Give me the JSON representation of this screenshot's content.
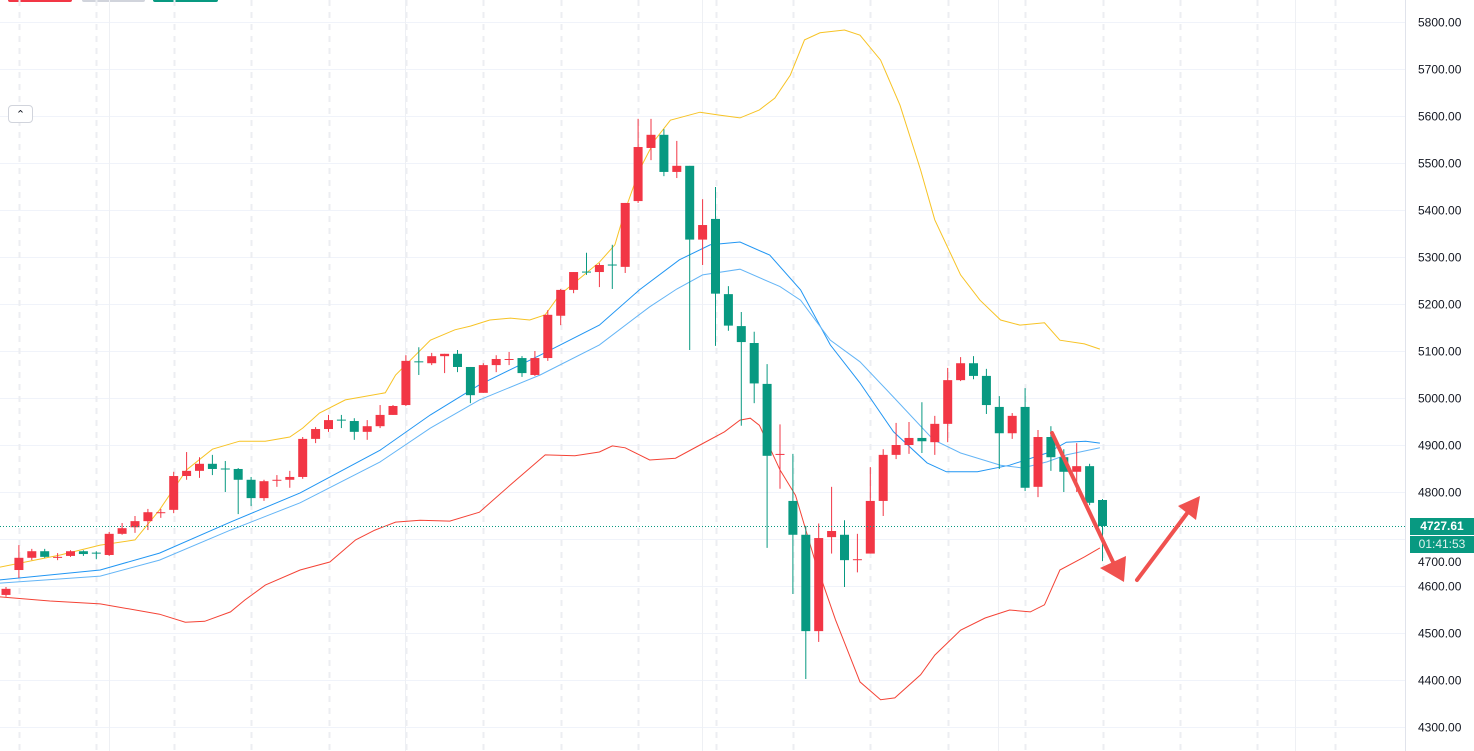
{
  "chart_data": {
    "type": "candlestick",
    "title": "",
    "ylim": [
      4300,
      5800
    ],
    "y_ticks": [
      "4300.00",
      "4400.00",
      "4500.00",
      "4600.00",
      "4700.00",
      "4800.00",
      "4900.00",
      "5000.00",
      "5100.00",
      "5200.00",
      "5300.00",
      "5400.00",
      "5500.00",
      "5600.00",
      "5700.00",
      "5800.00"
    ],
    "up_color": "#F23645",
    "down_color": "#089981",
    "candles_ohlc": [
      [
        4581,
        4598,
        4577,
        4594
      ],
      [
        4634,
        4687,
        4617,
        4660
      ],
      [
        4660,
        4679,
        4655,
        4674
      ],
      [
        4674,
        4679,
        4660,
        4662
      ],
      [
        4661,
        4670,
        4655,
        4662
      ],
      [
        4664,
        4676,
        4662,
        4674
      ],
      [
        4674,
        4676,
        4664,
        4668
      ],
      [
        4671,
        4674,
        4657,
        4670
      ],
      [
        4666,
        4715,
        4664,
        4711
      ],
      [
        4711,
        4734,
        4709,
        4723
      ],
      [
        4725,
        4749,
        4713,
        4738
      ],
      [
        4738,
        4764,
        4719,
        4757
      ],
      [
        4756,
        4764,
        4745,
        4757
      ],
      [
        4762,
        4843,
        4755,
        4834
      ],
      [
        4834,
        4885,
        4826,
        4845
      ],
      [
        4845,
        4874,
        4830,
        4860
      ],
      [
        4860,
        4879,
        4836,
        4849
      ],
      [
        4850,
        4866,
        4800,
        4849
      ],
      [
        4849,
        4851,
        4753,
        4826
      ],
      [
        4826,
        4832,
        4770,
        4787
      ],
      [
        4787,
        4826,
        4781,
        4823
      ],
      [
        4825,
        4836,
        4811,
        4826
      ],
      [
        4826,
        4845,
        4809,
        4832
      ],
      [
        4832,
        4917,
        4828,
        4913
      ],
      [
        4913,
        4938,
        4904,
        4934
      ],
      [
        4934,
        4964,
        4928,
        4953
      ],
      [
        4954,
        4964,
        4936,
        4953
      ],
      [
        4951,
        4957,
        4911,
        4928
      ],
      [
        4928,
        4953,
        4911,
        4940
      ],
      [
        4940,
        4985,
        4936,
        4964
      ],
      [
        4964,
        4985,
        4964,
        4983
      ],
      [
        4985,
        5091,
        4983,
        5079
      ],
      [
        5078,
        5108,
        5049,
        5077
      ],
      [
        5074,
        5096,
        5070,
        5089
      ],
      [
        5089,
        5094,
        5053,
        5094
      ],
      [
        5094,
        5102,
        5055,
        5066
      ],
      [
        5066,
        5066,
        4989,
        5006
      ],
      [
        5011,
        5074,
        5011,
        5070
      ],
      [
        5070,
        5091,
        5055,
        5083
      ],
      [
        5082,
        5098,
        5070,
        5083
      ],
      [
        5085,
        5089,
        5045,
        5053
      ],
      [
        5049,
        5100,
        5047,
        5085
      ],
      [
        5085,
        5187,
        5079,
        5177
      ],
      [
        5175,
        5232,
        5155,
        5230
      ],
      [
        5230,
        5268,
        5223,
        5268
      ],
      [
        5269,
        5309,
        5262,
        5268
      ],
      [
        5268,
        5287,
        5236,
        5283
      ],
      [
        5284,
        5326,
        5232,
        5283
      ],
      [
        5279,
        5415,
        5266,
        5415
      ],
      [
        5419,
        5594,
        5415,
        5534
      ],
      [
        5532,
        5594,
        5506,
        5560
      ],
      [
        5560,
        5572,
        5472,
        5481
      ],
      [
        5481,
        5547,
        5468,
        5494
      ],
      [
        5494,
        5494,
        5102,
        5337
      ],
      [
        5337,
        5423,
        5283,
        5368
      ],
      [
        5381,
        5449,
        5111,
        5222
      ],
      [
        5221,
        5238,
        5143,
        5154
      ],
      [
        5153,
        5183,
        4941,
        5119
      ],
      [
        5117,
        5141,
        4989,
        5031
      ],
      [
        5030,
        5072,
        4681,
        4877
      ],
      [
        4880,
        4944,
        4807,
        4881
      ],
      [
        4781,
        4881,
        4583,
        4709
      ],
      [
        4709,
        4728,
        4402,
        4504
      ],
      [
        4504,
        4733,
        4481,
        4702
      ],
      [
        4704,
        4811,
        4669,
        4717
      ],
      [
        4709,
        4740,
        4598,
        4655
      ],
      [
        4656,
        4711,
        4629,
        4657
      ],
      [
        4669,
        4853,
        4669,
        4781
      ],
      [
        4781,
        4891,
        4749,
        4879
      ],
      [
        4879,
        4947,
        4870,
        4900
      ],
      [
        4900,
        4949,
        4881,
        4915
      ],
      [
        4915,
        4991,
        4883,
        4908
      ],
      [
        4906,
        4962,
        4879,
        4945
      ],
      [
        4945,
        5064,
        4906,
        5038
      ],
      [
        5038,
        5087,
        5036,
        5074
      ],
      [
        5074,
        5089,
        5040,
        5047
      ],
      [
        5047,
        5062,
        4966,
        4985
      ],
      [
        4981,
        5004,
        4849,
        4925
      ],
      [
        4925,
        4968,
        4913,
        4962
      ],
      [
        4981,
        5021,
        4802,
        4809
      ],
      [
        4811,
        4932,
        4789,
        4917
      ],
      [
        4917,
        4940,
        4845,
        4874
      ],
      [
        4874,
        4891,
        4800,
        4843
      ],
      [
        4843,
        4904,
        4800,
        4855
      ],
      [
        4855,
        4860,
        4772,
        4777
      ],
      [
        4783,
        4785,
        4653,
        4727.61
      ]
    ],
    "series": [
      {
        "name": "upper-band",
        "color": "#F7C325",
        "points": [
          [
            -0.5,
            4640
          ],
          [
            4.2,
            4666
          ],
          [
            7.3,
            4687
          ],
          [
            10,
            4698
          ],
          [
            11.9,
            4762
          ],
          [
            14,
            4847
          ],
          [
            16,
            4891
          ],
          [
            18.1,
            4908
          ],
          [
            20.1,
            4908
          ],
          [
            22,
            4917
          ],
          [
            23,
            4936
          ],
          [
            24.3,
            4968
          ],
          [
            26.3,
            4996
          ],
          [
            29.4,
            5011
          ],
          [
            30.2,
            5049
          ],
          [
            32.9,
            5123
          ],
          [
            34.8,
            5145
          ],
          [
            36,
            5153
          ],
          [
            37.5,
            5166
          ],
          [
            39.1,
            5170
          ],
          [
            40.6,
            5166
          ],
          [
            41.8,
            5177
          ],
          [
            42.9,
            5219
          ],
          [
            44.5,
            5255
          ],
          [
            46,
            5289
          ],
          [
            47.2,
            5326
          ],
          [
            48,
            5400
          ],
          [
            49.1,
            5485
          ],
          [
            50.3,
            5549
          ],
          [
            51.5,
            5591
          ],
          [
            53.8,
            5608
          ],
          [
            55.3,
            5602
          ],
          [
            56.9,
            5596
          ],
          [
            58.4,
            5613
          ],
          [
            59.6,
            5638
          ],
          [
            60.8,
            5687
          ],
          [
            61.9,
            5762
          ],
          [
            63.1,
            5777
          ],
          [
            65,
            5783
          ],
          [
            66.2,
            5772
          ],
          [
            67.8,
            5719
          ],
          [
            69.3,
            5623
          ],
          [
            70.9,
            5485
          ],
          [
            72,
            5379
          ],
          [
            74,
            5262
          ],
          [
            75.5,
            5208
          ],
          [
            77.1,
            5166
          ],
          [
            78.6,
            5155
          ],
          [
            80.5,
            5160
          ],
          [
            81.7,
            5123
          ],
          [
            83.6,
            5115
          ],
          [
            84.8,
            5104
          ]
        ]
      },
      {
        "name": "lower-band",
        "color": "#F44336",
        "points": [
          [
            -0.5,
            4577
          ],
          [
            3.4,
            4568
          ],
          [
            7.3,
            4562
          ],
          [
            11.9,
            4540
          ],
          [
            13.9,
            4523
          ],
          [
            15.4,
            4525
          ],
          [
            17.4,
            4545
          ],
          [
            18.5,
            4570
          ],
          [
            20.1,
            4602
          ],
          [
            22.8,
            4634
          ],
          [
            25.1,
            4651
          ],
          [
            27.1,
            4698
          ],
          [
            28.6,
            4719
          ],
          [
            30.2,
            4736
          ],
          [
            32.1,
            4740
          ],
          [
            34.4,
            4738
          ],
          [
            36.7,
            4757
          ],
          [
            39.1,
            4815
          ],
          [
            41.8,
            4879
          ],
          [
            44.1,
            4877
          ],
          [
            46,
            4885
          ],
          [
            47,
            4898
          ],
          [
            48,
            4894
          ],
          [
            49.9,
            4868
          ],
          [
            51.9,
            4872
          ],
          [
            53.8,
            4900
          ],
          [
            55.7,
            4928
          ],
          [
            56.9,
            4953
          ],
          [
            57.7,
            4957
          ],
          [
            58.4,
            4942
          ],
          [
            60,
            4847
          ],
          [
            61.2,
            4793
          ],
          [
            62.7,
            4655
          ],
          [
            64.3,
            4528
          ],
          [
            66.2,
            4396
          ],
          [
            67.8,
            4358
          ],
          [
            68.9,
            4362
          ],
          [
            70.9,
            4411
          ],
          [
            72,
            4453
          ],
          [
            74,
            4506
          ],
          [
            75.9,
            4532
          ],
          [
            77.8,
            4549
          ],
          [
            79.4,
            4545
          ],
          [
            80.5,
            4560
          ],
          [
            81.7,
            4634
          ],
          [
            83.6,
            4662
          ],
          [
            84.8,
            4681
          ]
        ]
      },
      {
        "name": "fast-ma",
        "color": "#2196F3",
        "points": [
          [
            -0.5,
            4613
          ],
          [
            7.3,
            4634
          ],
          [
            11.9,
            4670
          ],
          [
            17.4,
            4736
          ],
          [
            22.8,
            4798
          ],
          [
            29,
            4889
          ],
          [
            32.9,
            4964
          ],
          [
            36.7,
            5028
          ],
          [
            41.4,
            5091
          ],
          [
            46,
            5155
          ],
          [
            49.1,
            5230
          ],
          [
            52.2,
            5294
          ],
          [
            54.6,
            5326
          ],
          [
            56.9,
            5332
          ],
          [
            59.2,
            5304
          ],
          [
            61.6,
            5230
          ],
          [
            63.9,
            5113
          ],
          [
            66.2,
            5032
          ],
          [
            68.8,
            4928
          ],
          [
            71.4,
            4862
          ],
          [
            72.9,
            4843
          ],
          [
            75.3,
            4843
          ],
          [
            77.8,
            4857
          ],
          [
            80.7,
            4883
          ],
          [
            82.2,
            4906
          ],
          [
            83.7,
            4908
          ],
          [
            84.8,
            4904
          ]
        ]
      },
      {
        "name": "slow-ma",
        "color": "#64B5F6",
        "points": [
          [
            -0.5,
            4606
          ],
          [
            7.3,
            4621
          ],
          [
            11.9,
            4655
          ],
          [
            17.4,
            4719
          ],
          [
            22.8,
            4777
          ],
          [
            29,
            4864
          ],
          [
            32.9,
            4936
          ],
          [
            36.7,
            4996
          ],
          [
            41.4,
            5049
          ],
          [
            46,
            5113
          ],
          [
            49.9,
            5194
          ],
          [
            52,
            5232
          ],
          [
            54,
            5262
          ],
          [
            56.9,
            5274
          ],
          [
            60,
            5237
          ],
          [
            61.6,
            5208
          ],
          [
            63.9,
            5123
          ],
          [
            66.2,
            5077
          ],
          [
            68.8,
            5002
          ],
          [
            71.9,
            4911
          ],
          [
            74,
            4883
          ],
          [
            77.1,
            4857
          ],
          [
            78.8,
            4851
          ],
          [
            80.7,
            4864
          ],
          [
            82.2,
            4879
          ],
          [
            84.8,
            4894
          ]
        ]
      }
    ],
    "current_price": 4727.61,
    "current_price_label": "4727.61",
    "countdown_label": "01:41:53",
    "grid": true
  },
  "controls": {
    "collapse_icon": "chevron-up-icon",
    "collapse_glyph": "⌃"
  }
}
